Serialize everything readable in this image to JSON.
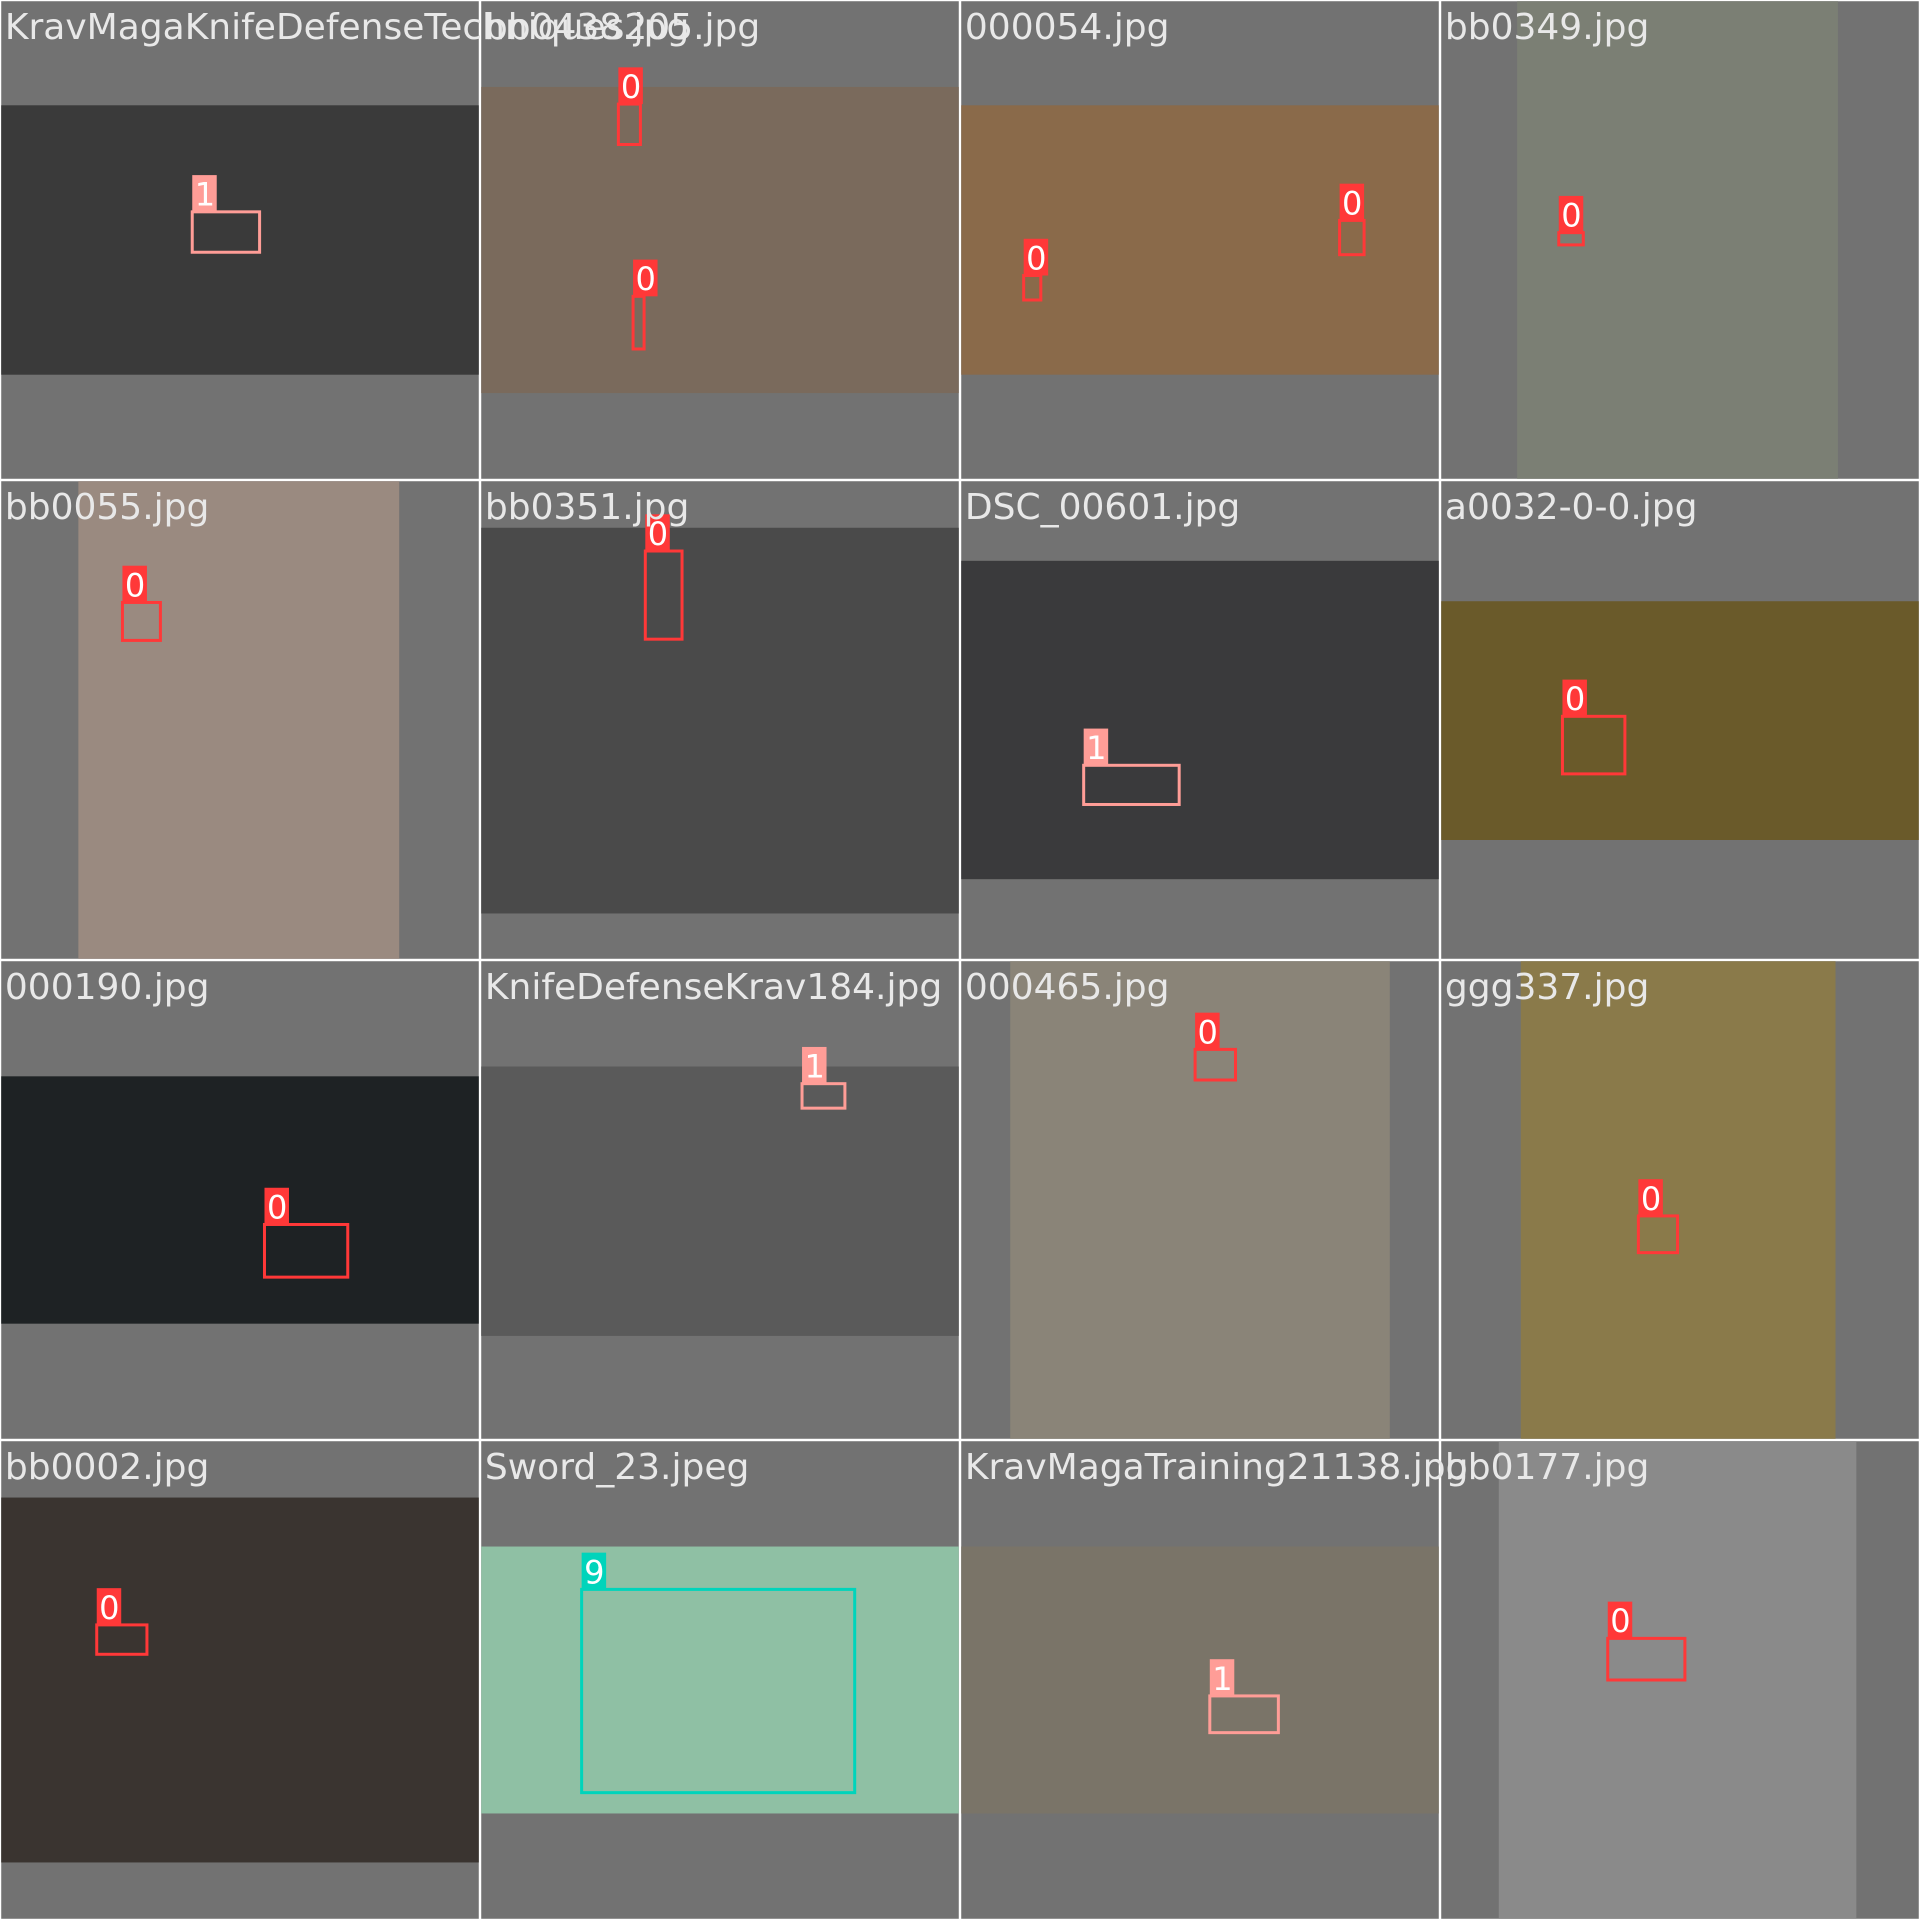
{
  "tiles": [
    {
      "filename": "KravMagaKnifeDefenseTechniques205.jpg",
      "boxes": [
        {
          "label": "1"
        }
      ]
    },
    {
      "filename": "bb0438.jpg",
      "boxes": [
        {
          "label": "0"
        },
        {
          "label": "0"
        }
      ]
    },
    {
      "filename": "000054.jpg",
      "boxes": [
        {
          "label": "0"
        },
        {
          "label": "0"
        }
      ]
    },
    {
      "filename": "bb0349.jpg",
      "boxes": [
        {
          "label": "0"
        }
      ]
    },
    {
      "filename": "bb0055.jpg",
      "boxes": [
        {
          "label": "0"
        }
      ]
    },
    {
      "filename": "bb0351.jpg",
      "boxes": [
        {
          "label": "0"
        }
      ]
    },
    {
      "filename": "DSC_00601.jpg",
      "boxes": [
        {
          "label": "1"
        }
      ]
    },
    {
      "filename": "a0032-0-0.jpg",
      "boxes": [
        {
          "label": "0"
        }
      ]
    },
    {
      "filename": "000190.jpg",
      "boxes": [
        {
          "label": "0"
        }
      ]
    },
    {
      "filename": "KnifeDefenseKrav184.jpg",
      "boxes": [
        {
          "label": "1"
        }
      ]
    },
    {
      "filename": "000465.jpg",
      "boxes": [
        {
          "label": "0"
        }
      ]
    },
    {
      "filename": "ggg337.jpg",
      "boxes": [
        {
          "label": "0"
        }
      ]
    },
    {
      "filename": "bb0002.jpg",
      "boxes": [
        {
          "label": "0"
        }
      ]
    },
    {
      "filename": "Sword_23.jpeg",
      "boxes": [
        {
          "label": "9"
        }
      ]
    },
    {
      "filename": "KravMagaTraining21138.jpg",
      "boxes": [
        {
          "label": "1"
        }
      ]
    },
    {
      "filename": "bb0177.jpg",
      "boxes": [
        {
          "label": "0"
        }
      ]
    }
  ]
}
